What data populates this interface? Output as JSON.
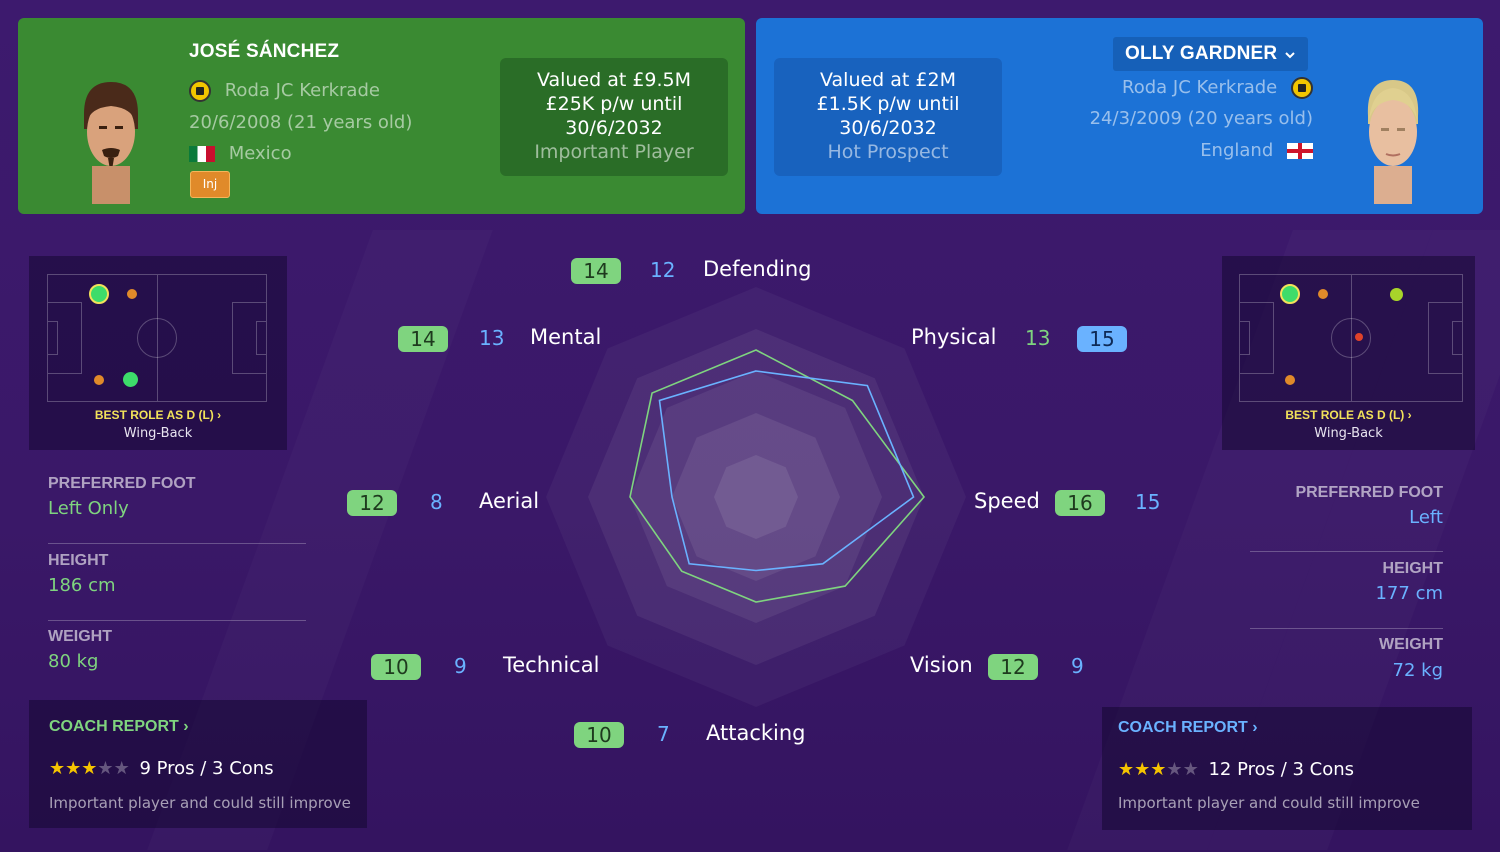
{
  "left_player": {
    "name": "JOSÉ SÁNCHEZ",
    "club": "Roda JC Kerkrade",
    "dob": "20/6/2008 (21 years old)",
    "nationality": "Mexico",
    "injury_tag": "Inj",
    "value_line": "Valued at £9.5M",
    "wage_line": "£25K p/w until",
    "contract_end": "30/6/2032",
    "status": "Important Player",
    "best_role_label": "BEST ROLE AS D (L) ›",
    "best_role": "Wing-Back",
    "preferred_foot_label": "PREFERRED FOOT",
    "preferred_foot": "Left Only",
    "height_label": "HEIGHT",
    "height": "186 cm",
    "weight_label": "WEIGHT",
    "weight": "80 kg",
    "coach_report_label": "COACH REPORT ›",
    "coach_stars": 3,
    "coach_summary": "9 Pros / 3 Cons",
    "coach_desc": "Important player and could still improve",
    "color": "#7fd47f"
  },
  "right_player": {
    "name": "OLLY GARDNER",
    "club": "Roda JC Kerkrade",
    "dob": "24/3/2009 (20 years old)",
    "nationality": "England",
    "value_line": "Valued at £2M",
    "wage_line": "£1.5K p/w until",
    "contract_end": "30/6/2032",
    "status": "Hot Prospect",
    "best_role_label": "BEST ROLE AS D (L) ›",
    "best_role": "Wing-Back",
    "preferred_foot_label": "PREFERRED FOOT",
    "preferred_foot": "Left",
    "height_label": "HEIGHT",
    "height": "177 cm",
    "weight_label": "WEIGHT",
    "weight": "72 kg",
    "coach_report_label": "COACH REPORT ›",
    "coach_stars": 3,
    "coach_summary": "12 Pros / 3 Cons",
    "coach_desc": "Important player and could still improve",
    "color": "#6ab2ff"
  },
  "chart_data": {
    "type": "radar",
    "categories": [
      "Defending",
      "Physical",
      "Speed",
      "Vision",
      "Attacking",
      "Technical",
      "Aerial",
      "Mental"
    ],
    "series": [
      {
        "name": "JOSÉ SÁNCHEZ",
        "values": [
          14,
          13,
          16,
          12,
          10,
          10,
          12,
          14
        ],
        "color": "#7fd47f"
      },
      {
        "name": "OLLY GARDNER",
        "values": [
          12,
          15,
          15,
          9,
          7,
          9,
          8,
          13
        ],
        "color": "#6ab2ff"
      }
    ],
    "rmax": 20
  }
}
